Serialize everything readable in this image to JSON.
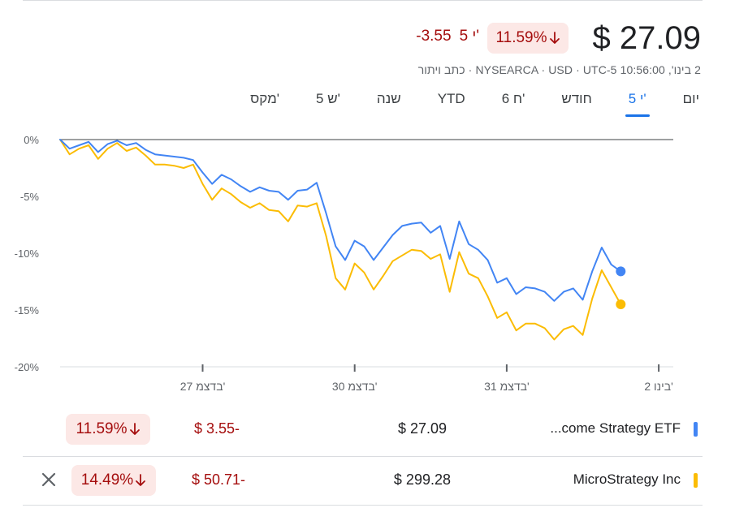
{
  "header": {
    "price": "$ 27.09",
    "percent": "11.59%",
    "change": "-3.55",
    "change_suffix": "5 י'",
    "meta": "2 בינו', 10:56:00 NYSEARCA · USD · UTC-5 · כתב ויתור",
    "down_color": "#a50e0e"
  },
  "tabs": [
    {
      "label": "יום",
      "active": false
    },
    {
      "label": "5 י'",
      "active": true
    },
    {
      "label": "חודש",
      "active": false
    },
    {
      "label": "6 ח'",
      "active": false
    },
    {
      "label": "YTD",
      "active": false
    },
    {
      "label": "שנה",
      "active": false
    },
    {
      "label": "5 ש'",
      "active": false
    },
    {
      "label": "מקס'",
      "active": false
    }
  ],
  "chart_data": {
    "type": "line",
    "y_unit": "percent change",
    "ylim": [
      -20,
      0
    ],
    "y_ticks": [
      0,
      -5,
      -10,
      -15,
      -20
    ],
    "y_tick_labels": [
      "0%",
      "-5%",
      "-10%",
      "-15%",
      "-20%"
    ],
    "x_tick_labels": [
      "27 בדצמ'",
      "30 בדצמ'",
      "31 בדצמ'",
      "2 בינו'"
    ],
    "x_tick_index": [
      15,
      31,
      47,
      63
    ],
    "grid": false,
    "baseline": 0,
    "series": [
      {
        "name": "...come Strategy ETF",
        "color": "#4285f4",
        "values": [
          0,
          -0.8,
          -0.5,
          -0.2,
          -1.1,
          -0.4,
          -0.1,
          -0.5,
          -0.3,
          -0.9,
          -1.3,
          -1.4,
          -1.5,
          -1.6,
          -1.8,
          -2.9,
          -3.9,
          -3.1,
          -3.5,
          -4.1,
          -4.6,
          -4.2,
          -4.5,
          -4.6,
          -5.3,
          -4.5,
          -4.4,
          -3.8,
          -6.5,
          -9.4,
          -10.6,
          -8.9,
          -9.4,
          -10.6,
          -9.5,
          -8.4,
          -7.6,
          -7.4,
          -7.3,
          -8.2,
          -7.6,
          -10.5,
          -7.2,
          -9.2,
          -9.7,
          -10.6,
          -12.6,
          -12.2,
          -13.6,
          -13.0,
          -13.1,
          -13.4,
          -14.2,
          -13.4,
          -13.1,
          -14.1,
          -11.6,
          -9.5,
          -11.0,
          -11.6
        ]
      },
      {
        "name": "MicroStrategy Inc",
        "color": "#fbbc04",
        "values": [
          0,
          -1.3,
          -0.8,
          -0.5,
          -1.7,
          -0.8,
          -0.3,
          -1.0,
          -0.7,
          -1.4,
          -2.2,
          -2.2,
          -2.3,
          -2.5,
          -2.2,
          -3.9,
          -5.3,
          -4.3,
          -4.8,
          -5.5,
          -6.0,
          -5.6,
          -6.2,
          -6.3,
          -7.2,
          -5.8,
          -5.9,
          -5.6,
          -8.5,
          -12.2,
          -13.2,
          -10.9,
          -11.7,
          -13.2,
          -12.0,
          -10.7,
          -10.2,
          -9.7,
          -9.8,
          -10.5,
          -10.1,
          -13.4,
          -9.9,
          -11.8,
          -12.2,
          -13.8,
          -15.7,
          -15.2,
          -16.8,
          -16.2,
          -16.2,
          -16.6,
          -17.6,
          -16.7,
          -16.4,
          -17.2,
          -14.0,
          -11.5,
          -13.0,
          -14.5
        ]
      }
    ]
  },
  "comparison": [
    {
      "name": "...come Strategy ETF",
      "color": "#4285f4",
      "price": "$ 27.09",
      "change": "$ 3.55-",
      "percent": "11.59%"
    },
    {
      "name": "MicroStrategy Inc",
      "color": "#fbbc04",
      "price": "$ 299.28",
      "change": "$ 50.71-",
      "percent": "14.49%"
    }
  ]
}
